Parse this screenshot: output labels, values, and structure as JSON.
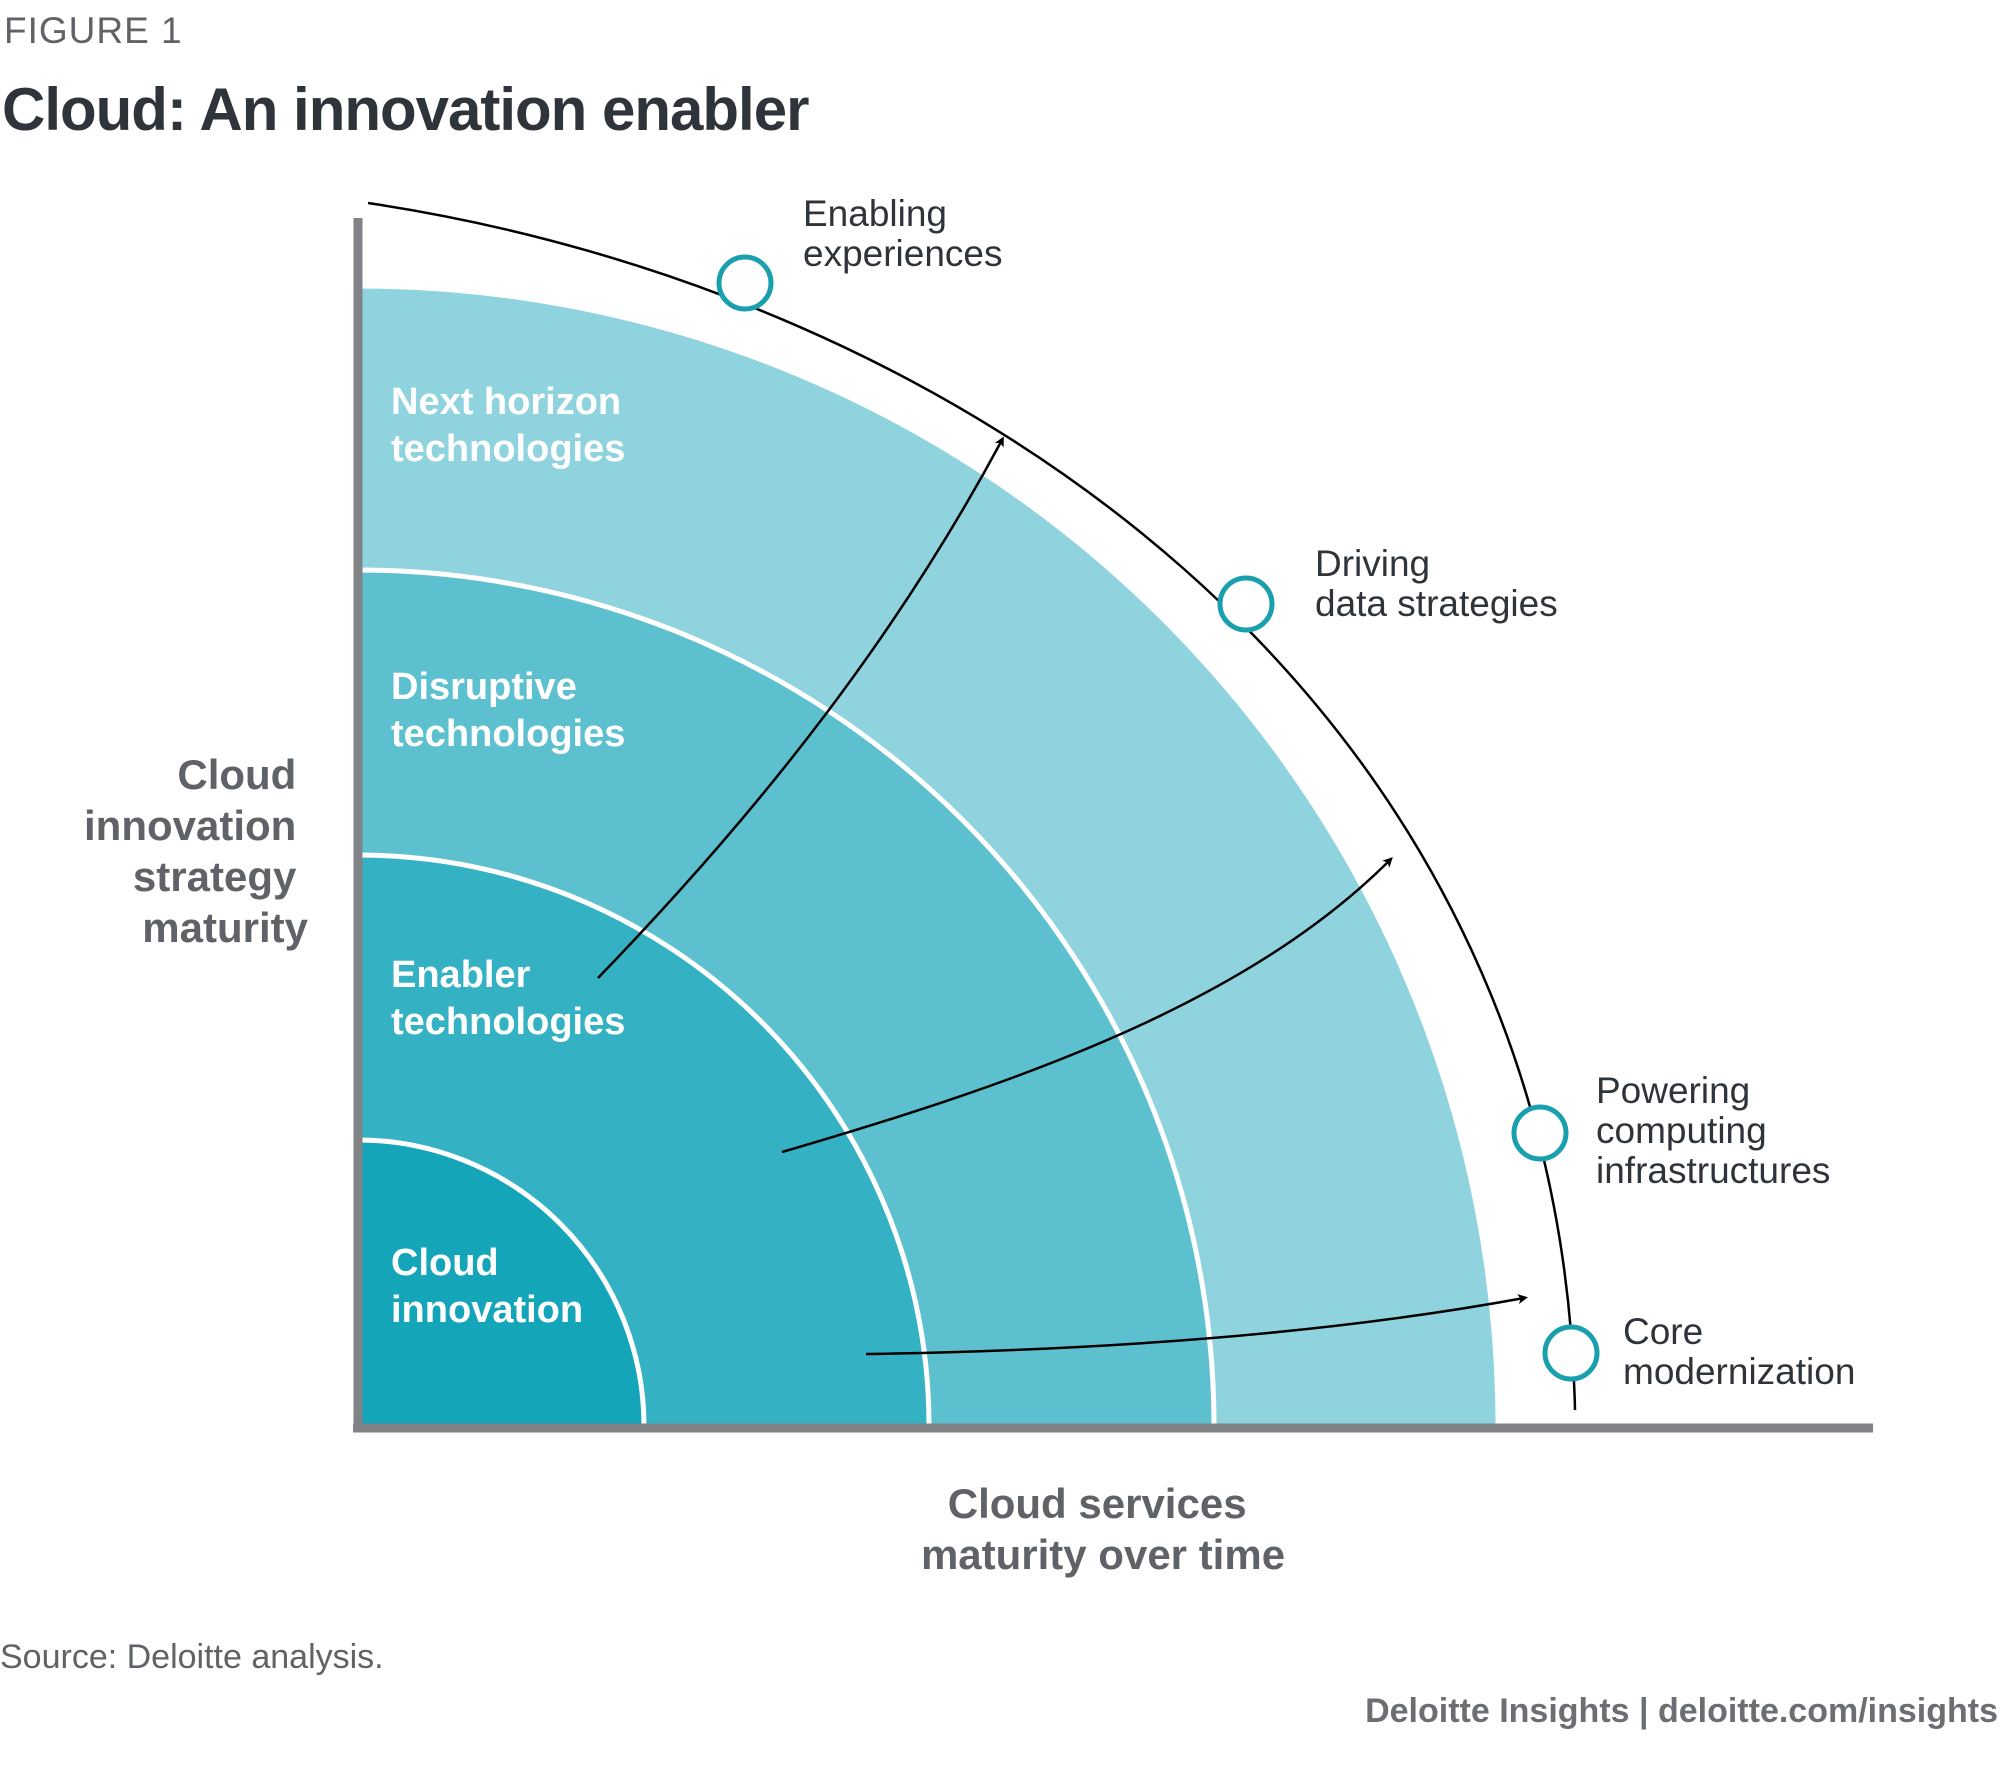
{
  "header": {
    "figure_label": "FIGURE 1",
    "title": "Cloud: An innovation enabler"
  },
  "axes": {
    "y_title_lines": [
      "Cloud",
      "innovation",
      "strategy",
      "maturity"
    ],
    "x_title_lines": [
      "Cloud services",
      "maturity over time"
    ]
  },
  "rings": [
    {
      "label_lines": [
        "Cloud",
        "innovation"
      ],
      "color": "#15a5b9"
    },
    {
      "label_lines": [
        "Enabler",
        "technologies"
      ],
      "color": "#34b1c3"
    },
    {
      "label_lines": [
        "Disruptive",
        "technologies"
      ],
      "color": "#5cc0cf"
    },
    {
      "label_lines": [
        "Next horizon",
        "technologies"
      ],
      "color": "#8fd3de"
    }
  ],
  "outcomes": [
    {
      "label_lines": [
        "Enabling",
        "experiences"
      ]
    },
    {
      "label_lines": [
        "Driving",
        "data strategies"
      ]
    },
    {
      "label_lines": [
        "Powering",
        "computing",
        "infrastructures"
      ]
    },
    {
      "label_lines": [
        "Core",
        "modernization"
      ]
    }
  ],
  "colors": {
    "marker_stroke": "#1a9fae",
    "axis": "#808285",
    "curve": "#000000"
  },
  "footer": {
    "source": "Source: Deloitte analysis.",
    "brand": "Deloitte Insights | deloitte.com/insights"
  }
}
